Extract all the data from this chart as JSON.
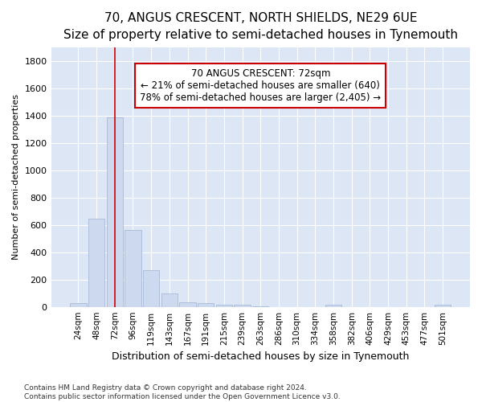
{
  "title": "70, ANGUS CRESCENT, NORTH SHIELDS, NE29 6UE",
  "subtitle": "Size of property relative to semi-detached houses in Tynemouth",
  "xlabel": "Distribution of semi-detached houses by size in Tynemouth",
  "ylabel": "Number of semi-detached properties",
  "categories": [
    "24sqm",
    "48sqm",
    "72sqm",
    "96sqm",
    "119sqm",
    "143sqm",
    "167sqm",
    "191sqm",
    "215sqm",
    "239sqm",
    "263sqm",
    "286sqm",
    "310sqm",
    "334sqm",
    "358sqm",
    "382sqm",
    "406sqm",
    "429sqm",
    "453sqm",
    "477sqm",
    "501sqm"
  ],
  "values": [
    30,
    645,
    1390,
    565,
    270,
    100,
    35,
    25,
    18,
    17,
    5,
    0,
    0,
    0,
    18,
    0,
    0,
    0,
    0,
    0,
    15
  ],
  "bar_color": "#ccd9ee",
  "bar_edgecolor": "#aabbd8",
  "vline_x_idx": 2,
  "vline_color": "#cc0000",
  "annotation_line1": "70 ANGUS CRESCENT: 72sqm",
  "annotation_line2": "← 21% of semi-detached houses are smaller (640)",
  "annotation_line3": "78% of semi-detached houses are larger (2,405) →",
  "annotation_box_facecolor": "#ffffff",
  "annotation_box_edgecolor": "#cc0000",
  "ylim": [
    0,
    1900
  ],
  "yticks": [
    0,
    200,
    400,
    600,
    800,
    1000,
    1200,
    1400,
    1600,
    1800
  ],
  "title_fontsize": 11,
  "subtitle_fontsize": 9.5,
  "xlabel_fontsize": 9,
  "ylabel_fontsize": 8,
  "tick_fontsize": 8,
  "footer": "Contains HM Land Registry data © Crown copyright and database right 2024.\nContains public sector information licensed under the Open Government Licence v3.0.",
  "bg_color": "#ffffff",
  "plot_bg_color": "#dce6f5"
}
